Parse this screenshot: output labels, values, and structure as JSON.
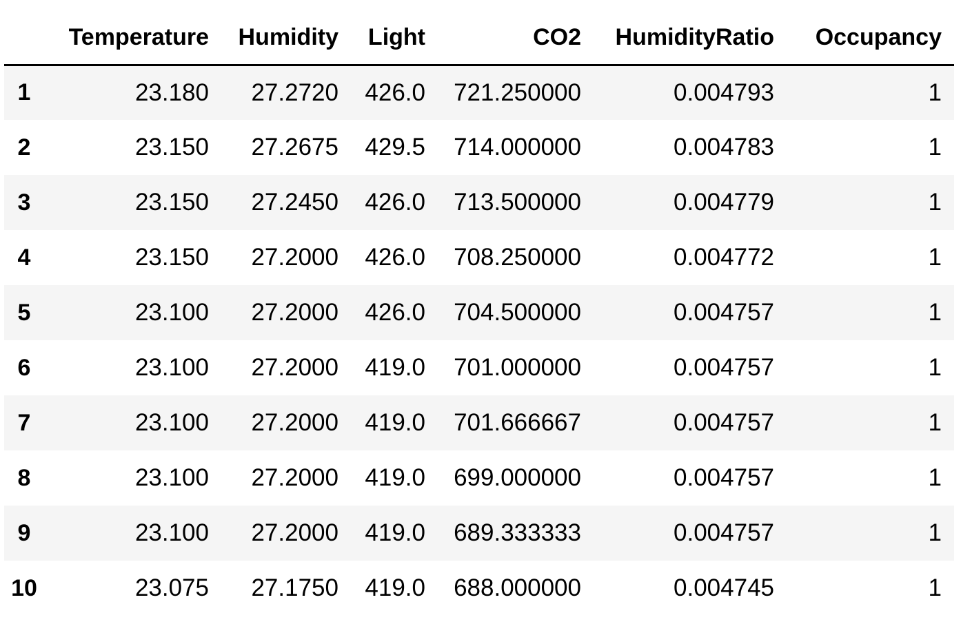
{
  "table": {
    "columns": [
      "Temperature",
      "Humidity",
      "Light",
      "CO2",
      "HumidityRatio",
      "Occupancy"
    ],
    "rows": [
      {
        "index": "1",
        "cells": [
          "23.180",
          "27.2720",
          "426.0",
          "721.250000",
          "0.004793",
          "1"
        ]
      },
      {
        "index": "2",
        "cells": [
          "23.150",
          "27.2675",
          "429.5",
          "714.000000",
          "0.004783",
          "1"
        ]
      },
      {
        "index": "3",
        "cells": [
          "23.150",
          "27.2450",
          "426.0",
          "713.500000",
          "0.004779",
          "1"
        ]
      },
      {
        "index": "4",
        "cells": [
          "23.150",
          "27.2000",
          "426.0",
          "708.250000",
          "0.004772",
          "1"
        ]
      },
      {
        "index": "5",
        "cells": [
          "23.100",
          "27.2000",
          "426.0",
          "704.500000",
          "0.004757",
          "1"
        ]
      },
      {
        "index": "6",
        "cells": [
          "23.100",
          "27.2000",
          "419.0",
          "701.000000",
          "0.004757",
          "1"
        ]
      },
      {
        "index": "7",
        "cells": [
          "23.100",
          "27.2000",
          "419.0",
          "701.666667",
          "0.004757",
          "1"
        ]
      },
      {
        "index": "8",
        "cells": [
          "23.100",
          "27.2000",
          "419.0",
          "699.000000",
          "0.004757",
          "1"
        ]
      },
      {
        "index": "9",
        "cells": [
          "23.100",
          "27.2000",
          "419.0",
          "689.333333",
          "0.004757",
          "1"
        ]
      },
      {
        "index": "10",
        "cells": [
          "23.075",
          "27.1750",
          "419.0",
          "688.000000",
          "0.004745",
          "1"
        ]
      }
    ]
  }
}
